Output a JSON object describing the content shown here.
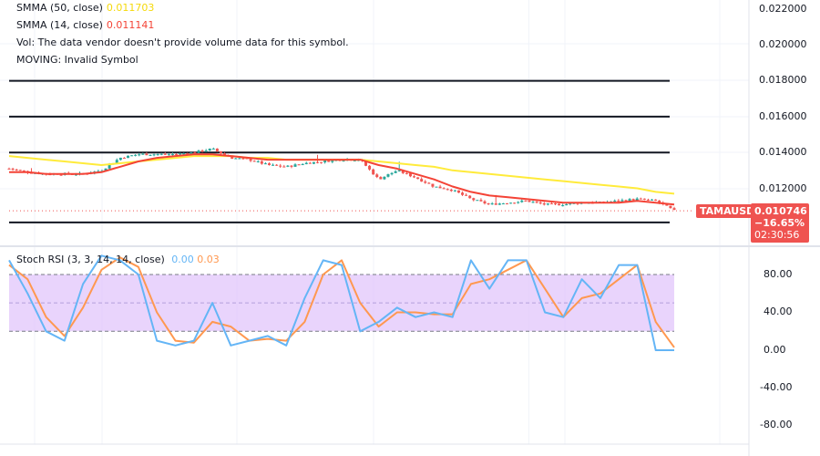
{
  "legend": {
    "smma50_label": "SMMA (50, close)",
    "smma50_value": "0.011703",
    "smma14_label": "SMMA (14, close)",
    "smma14_value": "0.011141",
    "vol_text": "Vol: The data vendor doesn't provide volume data for this symbol.",
    "moving_text": "MOVING: Invalid Symbol"
  },
  "price_tag": {
    "symbol": "TAMAUSD",
    "price": "0.010746",
    "change": "−16.65%",
    "countdown": "02:30:56"
  },
  "price_axis": [
    "0.022000",
    "0.020000",
    "0.018000",
    "0.016000",
    "0.014000",
    "0.012000"
  ],
  "stoch_legend": {
    "label": "Stoch RSI (3, 3, 14, 14, close)",
    "k_value": "0.00",
    "d_value": "0.03"
  },
  "stoch_axis": [
    "80.00",
    "40.00",
    "0.00",
    "-40.00",
    "-80.00"
  ],
  "colors": {
    "up": "#26a69a",
    "down": "#ef5350",
    "smma50": "#ffeb3b",
    "smma14": "#f44336",
    "k": "#64b5f6",
    "d": "#ff9850",
    "band": "#e1c5fb",
    "tag": "#ef5350"
  },
  "chart_data": [
    {
      "type": "candlestick",
      "ylim": [
        0.0095,
        0.0225
      ],
      "grid": true,
      "horizontal_levels": [
        0.018,
        0.016,
        0.014,
        0.0101
      ],
      "close": [
        0.0131,
        0.0129,
        0.0128,
        0.0128,
        0.0128,
        0.013,
        0.0137,
        0.0139,
        0.0139,
        0.0139,
        0.014,
        0.0142,
        0.0137,
        0.0136,
        0.0133,
        0.0132,
        0.0134,
        0.0135,
        0.0136,
        0.0136,
        0.0125,
        0.013,
        0.0126,
        0.0121,
        0.0119,
        0.0114,
        0.0111,
        0.0112,
        0.0113,
        0.0111,
        0.0111,
        0.0112,
        0.0112,
        0.0113,
        0.0114,
        0.0113,
        0.01075
      ],
      "series": [
        {
          "name": "SMMA (50, close)",
          "values": [
            0.0138,
            0.0137,
            0.0136,
            0.0135,
            0.0134,
            0.0133,
            0.0134,
            0.0135,
            0.0136,
            0.0137,
            0.0138,
            0.0138,
            0.0138,
            0.0137,
            0.0137,
            0.0136,
            0.0136,
            0.0136,
            0.0136,
            0.0136,
            0.0135,
            0.0134,
            0.0133,
            0.0132,
            0.013,
            0.0129,
            0.0128,
            0.0127,
            0.0126,
            0.0125,
            0.0124,
            0.0123,
            0.0122,
            0.0121,
            0.012,
            0.0118,
            0.0117
          ]
        },
        {
          "name": "SMMA (14, close)",
          "values": [
            0.0129,
            0.0129,
            0.0128,
            0.0128,
            0.0128,
            0.0129,
            0.0132,
            0.0135,
            0.0137,
            0.0138,
            0.0139,
            0.0139,
            0.0138,
            0.0137,
            0.0136,
            0.0136,
            0.0136,
            0.0136,
            0.0136,
            0.0136,
            0.0133,
            0.0131,
            0.0128,
            0.0125,
            0.0121,
            0.0118,
            0.0116,
            0.0115,
            0.0114,
            0.0113,
            0.0112,
            0.0112,
            0.0112,
            0.0112,
            0.0113,
            0.0112,
            0.0111
          ]
        }
      ],
      "last_price": 0.010746
    },
    {
      "type": "line",
      "title": "Stoch RSI (3, 3, 14, 14, close)",
      "ylim": [
        -90,
        105
      ],
      "band": [
        20,
        80
      ],
      "series": [
        {
          "name": "K",
          "values": [
            95,
            60,
            20,
            10,
            70,
            100,
            95,
            80,
            10,
            5,
            10,
            50,
            5,
            10,
            15,
            5,
            55,
            95,
            90,
            20,
            30,
            45,
            35,
            40,
            35,
            95,
            65,
            95,
            95,
            40,
            35,
            75,
            55,
            90,
            90,
            0,
            0
          ]
        },
        {
          "name": "D",
          "values": [
            90,
            75,
            35,
            15,
            45,
            85,
            98,
            88,
            40,
            10,
            8,
            30,
            25,
            10,
            12,
            10,
            30,
            80,
            95,
            50,
            25,
            40,
            40,
            38,
            38,
            70,
            75,
            85,
            95,
            65,
            35,
            55,
            60,
            75,
            90,
            30,
            3
          ]
        }
      ]
    }
  ]
}
